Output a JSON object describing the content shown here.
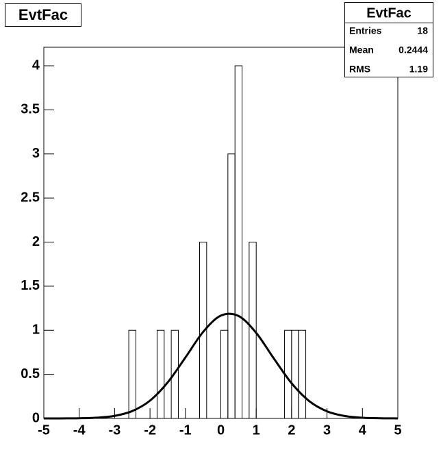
{
  "chart_data": {
    "type": "histogram",
    "title": "EvtFac",
    "bins": [
      -5,
      -4.8,
      -4.6,
      -4.4,
      -4.2,
      -4,
      -3.8,
      -3.6,
      -3.4,
      -3.2,
      -3,
      -2.8,
      -2.6,
      -2.4,
      -2.2,
      -2,
      -1.8,
      -1.6,
      -1.4,
      -1.2,
      -1,
      -0.8,
      -0.6,
      -0.4,
      -0.2,
      0,
      0.2,
      0.4,
      0.6,
      0.8,
      1,
      1.2,
      1.4,
      1.6,
      1.8,
      2,
      2.2,
      2.4,
      2.6,
      2.8,
      3,
      3.2,
      3.4,
      3.6,
      3.8,
      4,
      4.2,
      4.4,
      4.6,
      4.8,
      5
    ],
    "values": [
      0,
      0,
      0,
      0,
      0,
      0,
      0,
      0,
      0,
      0,
      0,
      0,
      1,
      0,
      0,
      0,
      1,
      0,
      1,
      0,
      0,
      0,
      2,
      0,
      0,
      1,
      3,
      4,
      0,
      2,
      0,
      0,
      0,
      0,
      1,
      1,
      1,
      0,
      0,
      0,
      0,
      0,
      0,
      0,
      0,
      0,
      0,
      0,
      0,
      0
    ],
    "color": "#000000",
    "fit": {
      "color": "#000000",
      "x": [
        -5,
        -4.5,
        -4,
        -3.5,
        -3,
        -2.5,
        -2,
        -1.5,
        -1,
        -0.5,
        0,
        0.5,
        1,
        1.5,
        2,
        2.5,
        3,
        3.5,
        4,
        4.5,
        5
      ],
      "y": [
        0.0001,
        0.0004,
        0.002,
        0.0085,
        0.029,
        0.084,
        0.202,
        0.409,
        0.691,
        0.981,
        1.166,
        1.162,
        0.97,
        0.679,
        0.399,
        0.196,
        0.081,
        0.028,
        0.008,
        0.002,
        0.0004
      ]
    },
    "xlim": [
      -5,
      5
    ],
    "xticks": [
      -5,
      -4,
      -3,
      -2,
      -1,
      0,
      1,
      2,
      3,
      4,
      5
    ],
    "ylim": [
      0,
      4.21
    ],
    "yticks": [
      0,
      0.5,
      1,
      1.5,
      2,
      2.5,
      3,
      3.5,
      4
    ],
    "stats": {
      "title": "EvtFac",
      "rows": [
        [
          "Entries",
          18
        ],
        [
          "Mean",
          0.2444
        ],
        [
          "RMS",
          1.19
        ]
      ]
    }
  }
}
